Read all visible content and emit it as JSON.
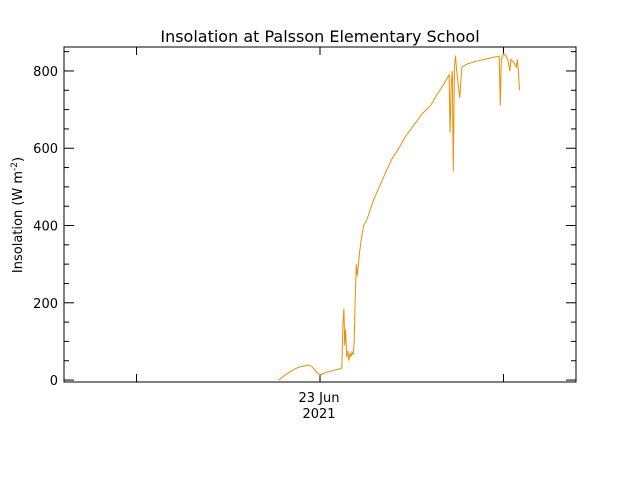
{
  "chart_data": {
    "type": "line",
    "title": "Insolation at Palsson Elementary School",
    "ylabel": "Insolation (W m",
    "ylabel_superscript": "-2",
    "ylabel_close": ")",
    "xlabel": "",
    "x_tick_labels": [
      {
        "line1": "23 Jun",
        "line2": "2021"
      }
    ],
    "y_ticks": [
      0,
      200,
      400,
      600,
      800
    ],
    "y_tick_labels": [
      "0",
      "200",
      "400",
      "600",
      "800"
    ],
    "ylim": [
      -5,
      862
    ],
    "x_unit": "hours since 00:00, 23 Jun 2021",
    "xlim": [
      -12,
      12
    ],
    "grid": false,
    "line_color": "#f08c00",
    "series": [
      {
        "points": [
          [
            -1.94,
            0
          ],
          [
            -1.7,
            10
          ],
          [
            -1.45,
            20
          ],
          [
            -1.2,
            28
          ],
          [
            -0.95,
            34
          ],
          [
            -0.7,
            37
          ],
          [
            -0.55,
            39
          ],
          [
            -0.4,
            36
          ],
          [
            -0.25,
            26
          ],
          [
            -0.1,
            17
          ],
          [
            0.02,
            13
          ],
          [
            0.15,
            17
          ],
          [
            0.35,
            21
          ],
          [
            0.55,
            24
          ],
          [
            0.75,
            27
          ],
          [
            0.95,
            29
          ],
          [
            1.02,
            31
          ],
          [
            1.08,
            150
          ],
          [
            1.12,
            185
          ],
          [
            1.16,
            90
          ],
          [
            1.2,
            130
          ],
          [
            1.25,
            60
          ],
          [
            1.3,
            75
          ],
          [
            1.35,
            50
          ],
          [
            1.4,
            70
          ],
          [
            1.45,
            60
          ],
          [
            1.5,
            72
          ],
          [
            1.55,
            65
          ],
          [
            1.6,
            95
          ],
          [
            1.65,
            210
          ],
          [
            1.7,
            300
          ],
          [
            1.75,
            270
          ],
          [
            1.85,
            330
          ],
          [
            1.95,
            370
          ],
          [
            2.05,
            400
          ],
          [
            2.2,
            415
          ],
          [
            2.35,
            440
          ],
          [
            2.5,
            465
          ],
          [
            2.7,
            490
          ],
          [
            2.9,
            515
          ],
          [
            3.1,
            540
          ],
          [
            3.4,
            575
          ],
          [
            3.7,
            600
          ],
          [
            4.0,
            630
          ],
          [
            4.4,
            660
          ],
          [
            4.8,
            690
          ],
          [
            5.2,
            712
          ],
          [
            5.5,
            740
          ],
          [
            5.8,
            765
          ],
          [
            6.05,
            790
          ],
          [
            6.1,
            640
          ],
          [
            6.15,
            770
          ],
          [
            6.2,
            800
          ],
          [
            6.25,
            540
          ],
          [
            6.3,
            810
          ],
          [
            6.35,
            840
          ],
          [
            6.4,
            805
          ],
          [
            6.55,
            730
          ],
          [
            6.65,
            810
          ],
          [
            6.9,
            818
          ],
          [
            7.3,
            825
          ],
          [
            7.7,
            830
          ],
          [
            8.1,
            835
          ],
          [
            8.4,
            838
          ],
          [
            8.45,
            710
          ],
          [
            8.5,
            830
          ],
          [
            8.6,
            845
          ],
          [
            8.7,
            840
          ],
          [
            8.8,
            830
          ],
          [
            8.9,
            800
          ],
          [
            8.95,
            830
          ],
          [
            9.1,
            820
          ],
          [
            9.2,
            810
          ],
          [
            9.25,
            830
          ],
          [
            9.3,
            800
          ],
          [
            9.35,
            750
          ]
        ]
      }
    ]
  }
}
